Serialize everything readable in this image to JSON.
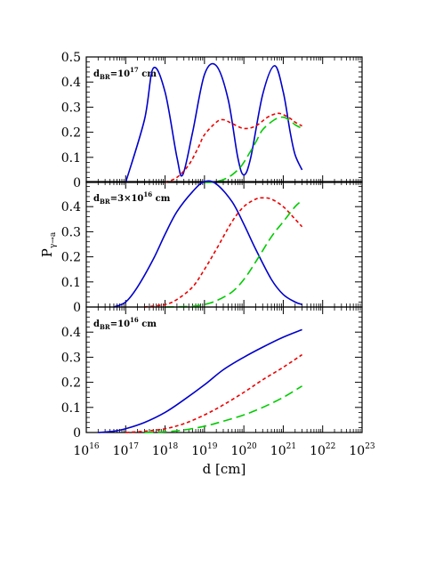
{
  "chart_data": {
    "type": "line",
    "xscale": "log",
    "x_tick_labels": [
      "10^16",
      "10^17",
      "10^18",
      "10^19",
      "10^20",
      "10^21",
      "10^22",
      "10^23"
    ],
    "xlabel": "d [cm]",
    "ylabel": "P_{γ→a}",
    "xlim": [
      "1e16",
      "1e23"
    ],
    "colors": {
      "blue": "#0000cc",
      "red": "#ee0000",
      "green": "#00cc00"
    },
    "series_styles": [
      "blue solid",
      "red short-dashed",
      "green long-dashed"
    ],
    "panels": [
      {
        "label": "d_BR=10^17 cm",
        "ylim": [
          0,
          0.5
        ],
        "yticks": [
          0,
          0.1,
          0.2,
          0.3,
          0.4,
          0.5
        ],
        "y_tick_labels": [
          "0",
          "0.1",
          "0.2",
          "0.3",
          "0.4",
          "0.5"
        ],
        "series": [
          {
            "style": "blue-solid",
            "x": [
              "1e17",
              "3e17",
              "5e17",
              "1e18",
              "2e18",
              "2.8e18",
              "5e18",
              "1e19",
              "2e19",
              "4e19",
              "7e19",
              "1e20",
              "1.5e20",
              "3e20",
              "6e20",
              "1e21",
              "1.5e21",
              "2e21",
              "3e21"
            ],
            "y": [
              0.0,
              0.25,
              0.455,
              0.36,
              0.1,
              0.03,
              0.2,
              0.43,
              0.465,
              0.33,
              0.1,
              0.03,
              0.1,
              0.35,
              0.465,
              0.36,
              0.2,
              0.11,
              0.05
            ]
          },
          {
            "style": "red-short-dashed",
            "x": [
              "1e18",
              "2e18",
              "4e18",
              "7e18",
              "1e19",
              "2e19",
              "3e19",
              "5e19",
              "1e20",
              "2e20",
              "4e20",
              "7e20",
              "1e21",
              "1.5e21",
              "2e21",
              "3e21"
            ],
            "y": [
              0.0,
              0.02,
              0.07,
              0.14,
              0.19,
              0.24,
              0.25,
              0.235,
              0.215,
              0.225,
              0.26,
              0.275,
              0.27,
              0.255,
              0.24,
              0.225
            ]
          },
          {
            "style": "green-long-dashed",
            "x": [
              "1e19",
              "2e19",
              "4e19",
              "7e19",
              "1e20",
              "2e20",
              "3e20",
              "6e20",
              "1e21",
              "1.5e21",
              "2e21",
              "3e21"
            ],
            "y": [
              0.0,
              0.003,
              0.02,
              0.05,
              0.08,
              0.16,
              0.21,
              0.25,
              0.26,
              0.245,
              0.23,
              0.215
            ]
          }
        ]
      },
      {
        "label": "d_BR=3×10^16 cm",
        "ylim": [
          0,
          0.5
        ],
        "yticks": [
          0,
          0.1,
          0.2,
          0.3,
          0.4
        ],
        "y_tick_labels": [
          "0",
          "0.1",
          "0.2",
          "0.3",
          "0.4"
        ],
        "series": [
          {
            "style": "blue-solid",
            "x": [
              "5e16",
              "1e17",
              "2e17",
              "5e17",
              "1e18",
              "2e18",
              "5e18",
              "1e19",
              "2e19",
              "5e19",
              "1e20",
              "2e20",
              "5e20",
              "1e21",
              "2e21",
              "3e21"
            ],
            "y": [
              0.0,
              0.02,
              0.08,
              0.19,
              0.29,
              0.38,
              0.46,
              0.5,
              0.49,
              0.42,
              0.33,
              0.23,
              0.11,
              0.05,
              0.02,
              0.01
            ]
          },
          {
            "style": "red-short-dashed",
            "x": [
              "3e17",
              "1e18",
              "2e18",
              "5e18",
              "1e19",
              "2e19",
              "5e19",
              "1e20",
              "2e20",
              "3e20",
              "5e20",
              "1e21",
              "2e21",
              "3e21"
            ],
            "y": [
              0.0,
              0.01,
              0.03,
              0.08,
              0.15,
              0.23,
              0.34,
              0.4,
              0.43,
              0.435,
              0.43,
              0.4,
              0.35,
              0.32
            ]
          },
          {
            "style": "green-long-dashed",
            "x": [
              "1e18",
              "5e18",
              "1e19",
              "2e19",
              "5e19",
              "1e20",
              "2e20",
              "5e20",
              "1e21",
              "2e21",
              "3e21"
            ],
            "y": [
              0.0,
              0.003,
              0.01,
              0.025,
              0.06,
              0.11,
              0.18,
              0.28,
              0.34,
              0.4,
              0.425
            ]
          }
        ]
      },
      {
        "label": "d_BR=10^16 cm",
        "ylim": [
          0,
          0.5
        ],
        "yticks": [
          0,
          0.1,
          0.2,
          0.3,
          0.4
        ],
        "y_tick_labels": [
          "0",
          "0.1",
          "0.2",
          "0.3",
          "0.4"
        ],
        "series": [
          {
            "style": "blue-solid",
            "x": [
              "2e16",
              "5e16",
              "1e17",
              "3e17",
              "1e18",
              "3e18",
              "1e19",
              "3e19",
              "1e20",
              "3e20",
              "1e21",
              "3e21"
            ],
            "y": [
              0.0,
              0.005,
              0.015,
              0.04,
              0.08,
              0.13,
              0.19,
              0.25,
              0.3,
              0.34,
              0.38,
              0.41
            ]
          },
          {
            "style": "red-short-dashed",
            "x": [
              "1e17",
              "3e17",
              "1e18",
              "3e18",
              "1e19",
              "3e19",
              "1e20",
              "3e20",
              "1e21",
              "3e21"
            ],
            "y": [
              0.0,
              0.005,
              0.015,
              0.035,
              0.07,
              0.11,
              0.16,
              0.21,
              0.26,
              0.31
            ]
          },
          {
            "style": "green-long-dashed",
            "x": [
              "3e17",
              "1e18",
              "3e18",
              "1e19",
              "3e19",
              "1e20",
              "3e20",
              "1e21",
              "3e21"
            ],
            "y": [
              0.0,
              0.003,
              0.01,
              0.025,
              0.045,
              0.07,
              0.1,
              0.14,
              0.185
            ]
          }
        ]
      }
    ]
  }
}
